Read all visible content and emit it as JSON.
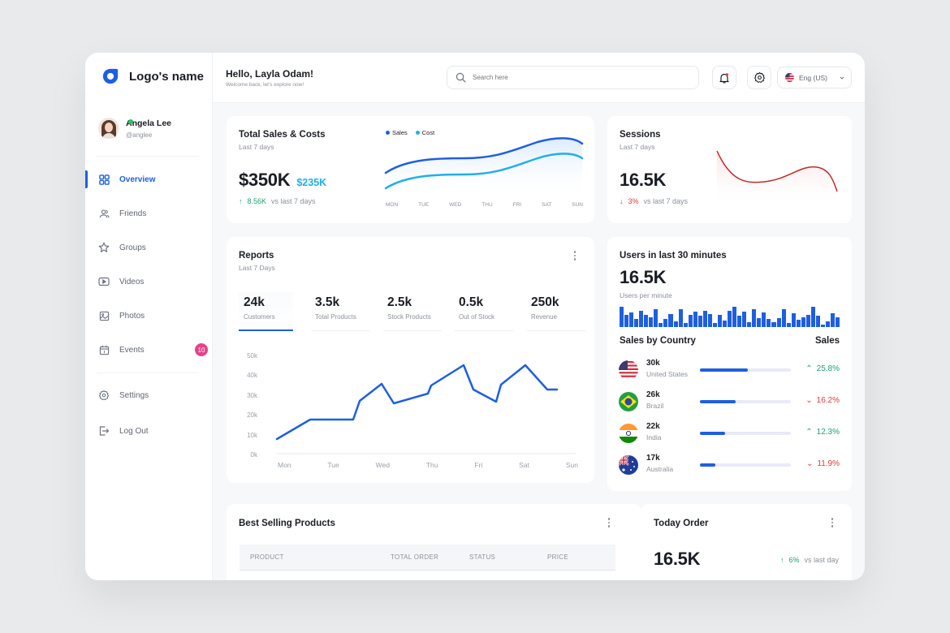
{
  "app": {
    "logo_name": "Logo's name"
  },
  "profile": {
    "name": "Angela Lee",
    "handle": "@anglee",
    "status": "online"
  },
  "sidebar": {
    "items": [
      {
        "label": "Overview",
        "icon": "grid-icon",
        "active": true
      },
      {
        "label": "Friends",
        "icon": "users-icon"
      },
      {
        "label": "Groups",
        "icon": "star-icon"
      },
      {
        "label": "Videos",
        "icon": "video-icon"
      },
      {
        "label": "Photos",
        "icon": "image-icon"
      },
      {
        "label": "Events",
        "icon": "calendar-icon",
        "badge": "10"
      }
    ],
    "bottom_items": [
      {
        "label": "Settings",
        "icon": "gear-icon"
      },
      {
        "label": "Log Out",
        "icon": "logout-icon"
      }
    ]
  },
  "header": {
    "greeting": "Hello, Layla Odam!",
    "subtitle": "Welcome back, let's explore now!",
    "search_placeholder": "Search here",
    "language": "Eng (US)"
  },
  "total_sales": {
    "title": "Total Sales & Costs",
    "period": "Last 7 days",
    "sales_value": "$350K",
    "cost_value": "$235K",
    "change": "8.56K",
    "change_label": "vs last 7 days",
    "legend": [
      "Sales",
      "Cost"
    ],
    "days": [
      "MON",
      "TUE",
      "WED",
      "THU",
      "FRI",
      "SAT",
      "SUN"
    ]
  },
  "sessions": {
    "title": "Sessions",
    "period": "Last 7 days",
    "value": "16.5K",
    "change": "3%",
    "change_label": "vs last 7 days"
  },
  "reports": {
    "title": "Reports",
    "period": "Last 7 Days",
    "stats": [
      {
        "value": "24k",
        "label": "Customers",
        "active": true
      },
      {
        "value": "3.5k",
        "label": "Total Products"
      },
      {
        "value": "2.5k",
        "label": "Stock Products"
      },
      {
        "value": "0.5k",
        "label": "Out of Stock"
      },
      {
        "value": "250k",
        "label": "Revenue"
      }
    ],
    "y_ticks": [
      "50k",
      "40k",
      "30k",
      "20k",
      "10k",
      "0k"
    ],
    "x_ticks": [
      "Mon",
      "Tue",
      "Wed",
      "Thu",
      "Fri",
      "Sat",
      "Sun"
    ]
  },
  "users_30": {
    "title": "Users in last 30 minutes",
    "value": "16.5K",
    "sub": "Users per minute",
    "bars": [
      24,
      14,
      17,
      10,
      19,
      14,
      12,
      21,
      5,
      10,
      15,
      7,
      21,
      5,
      14,
      18,
      13,
      19,
      15,
      5,
      14,
      8,
      19,
      24,
      13,
      18,
      6,
      21,
      11,
      17,
      10,
      6,
      11,
      21,
      5,
      16,
      9,
      12,
      14,
      24,
      13,
      3,
      7,
      16,
      12
    ]
  },
  "sales_by_country": {
    "title": "Sales by Country",
    "col": "Sales",
    "rows": [
      {
        "value": "30k",
        "country": "United States",
        "pct": 53,
        "change": "25.8%",
        "dir": "up"
      },
      {
        "value": "26k",
        "country": "Brazil",
        "pct": 39,
        "change": "16.2%",
        "dir": "down"
      },
      {
        "value": "22k",
        "country": "India",
        "pct": 28,
        "change": "12.3%",
        "dir": "up"
      },
      {
        "value": "17k",
        "country": "Australia",
        "pct": 17,
        "change": "11.9%",
        "dir": "down"
      }
    ]
  },
  "best_selling": {
    "title": "Best Selling Products",
    "columns": [
      "PRODUCT",
      "TOTAL ORDER",
      "STATUS",
      "PRICE"
    ]
  },
  "today_order": {
    "title": "Today Order",
    "value": "16.5K",
    "change": "6%",
    "change_label": "vs last day"
  },
  "colors": {
    "primary": "#1e5fe0",
    "cost": "#1fb0e8",
    "up": "#22a06b",
    "down": "#d93b3b",
    "badge": "#e64289"
  }
}
